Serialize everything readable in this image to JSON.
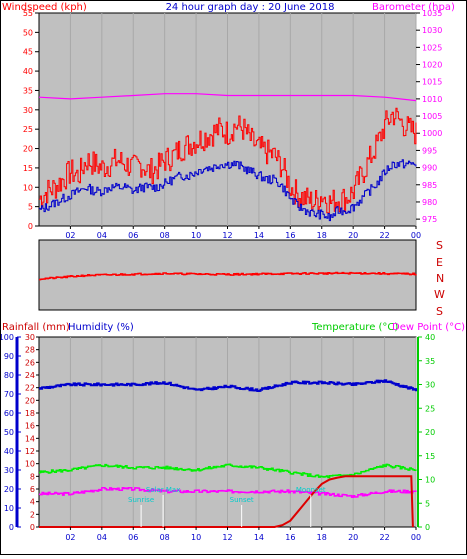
{
  "header": {
    "top_left": "Windspeed (kph)",
    "top_center": "24 hour graph day : 20 June 2018",
    "top_right": "Barometer (hpa)",
    "bottom_left_rain": "Rainfall (mm)",
    "bottom_left_hum": "Humidity (%)",
    "bottom_right_temp": "Temperature (°C)",
    "bottom_right_dew": "Dew Point (°C)"
  },
  "compass": [
    "S",
    "E",
    "N",
    "W",
    "S"
  ],
  "x_ticks": [
    "02",
    "04",
    "06",
    "08",
    "10",
    "12",
    "14",
    "16",
    "18",
    "20",
    "22",
    "00"
  ],
  "colors": {
    "wind": "#ff0000",
    "gust": "#0000cc",
    "baro": "#ff00ff",
    "dir": "#ff0000",
    "rain": "#dd0000",
    "humidity": "#0000cc",
    "temp": "#00ee00",
    "dew": "#ff00ff",
    "label": "#00cccc",
    "plot_bg": "#c0c0c0",
    "blue_axis": "#0000cc",
    "green_axis": "#00cc00"
  },
  "chart_data": [
    {
      "type": "line",
      "title": "24 hour graph day : 20 June 2018",
      "x_unit": "hour",
      "xlim": [
        0,
        24
      ],
      "y_left": {
        "label": "Windspeed (kph)",
        "ylim": [
          0,
          55
        ],
        "ticks": [
          0,
          5,
          10,
          15,
          20,
          25,
          30,
          35,
          40,
          45,
          50,
          55
        ]
      },
      "y_right": {
        "label": "Barometer (hpa)",
        "ylim": [
          973,
          1035
        ],
        "ticks": [
          975,
          980,
          985,
          990,
          995,
          1000,
          1005,
          1010,
          1015,
          1020,
          1025,
          1030,
          1035
        ]
      },
      "series": [
        {
          "axis": "left",
          "x": [
            0,
            0.5,
            1,
            1.5,
            2,
            2.5,
            3,
            3.5,
            4,
            4.5,
            5,
            5.5,
            6,
            6.5,
            7,
            7.5,
            8,
            8.5,
            9,
            9.5,
            10,
            10.5,
            11,
            11.5,
            12,
            12.5,
            13,
            13.5,
            14,
            14.5,
            15,
            15.5,
            16,
            16.5,
            17,
            17.5,
            18,
            18.5,
            19,
            19.5,
            20,
            20.5,
            21,
            21.5,
            22,
            22.5,
            23,
            23.5,
            24
          ],
          "y": [
            7,
            9,
            10,
            12,
            14,
            13,
            17,
            16,
            15,
            16,
            17,
            16,
            15,
            16,
            14,
            15,
            17,
            18,
            20,
            21,
            22,
            23,
            24,
            25,
            24,
            26,
            25,
            22,
            20,
            19,
            18,
            15,
            10,
            8,
            7,
            6,
            8,
            6,
            7,
            7,
            9,
            13,
            17,
            21,
            26,
            29,
            27,
            25,
            24
          ]
        },
        {
          "axis": "left",
          "x": [
            0,
            0.5,
            1,
            1.5,
            2,
            2.5,
            3,
            3.5,
            4,
            4.5,
            5,
            5.5,
            6,
            6.5,
            7,
            7.5,
            8,
            8.5,
            9,
            9.5,
            10,
            10.5,
            11,
            11.5,
            12,
            12.5,
            13,
            13.5,
            14,
            14.5,
            15,
            15.5,
            16,
            16.5,
            17,
            17.5,
            18,
            18.5,
            19,
            19.5,
            20,
            20.5,
            21,
            21.5,
            22,
            22.5,
            23,
            23.5,
            24
          ],
          "y": [
            4,
            5,
            6,
            7,
            8,
            9,
            10,
            9,
            9,
            10,
            10,
            10,
            9,
            10,
            10,
            10,
            11,
            12,
            13,
            13,
            14,
            15,
            15,
            16,
            16,
            16,
            15,
            14,
            13,
            12,
            12,
            10,
            7,
            5,
            4,
            3,
            3,
            2,
            4,
            4,
            5,
            7,
            9,
            11,
            14,
            16,
            16,
            16,
            16
          ]
        },
        {
          "axis": "right",
          "x": [
            0,
            2,
            4,
            6,
            8,
            10,
            12,
            14,
            16,
            18,
            20,
            22,
            24
          ],
          "y": [
            1010.5,
            1010,
            1010.5,
            1011,
            1011.5,
            1011.5,
            1011,
            1011,
            1011,
            1011,
            1011,
            1010.5,
            1009.5
          ]
        }
      ]
    },
    {
      "type": "line",
      "x_unit": "hour",
      "xlim": [
        0,
        24
      ],
      "y_labels": [
        "S",
        "E",
        "N",
        "W",
        "S"
      ],
      "ylim": [
        0,
        360
      ],
      "series": [
        {
          "x": [
            0,
            1,
            2,
            3,
            4,
            5,
            6,
            7,
            8,
            9,
            10,
            11,
            12,
            13,
            14,
            15,
            16,
            17,
            18,
            19,
            20,
            21,
            22,
            23,
            24
          ],
          "y": [
            160,
            165,
            172,
            178,
            180,
            182,
            184,
            186,
            188,
            186,
            185,
            184,
            183,
            184,
            185,
            186,
            187,
            188,
            188,
            189,
            189,
            189,
            187,
            186,
            185
          ]
        }
      ]
    },
    {
      "type": "line",
      "x_unit": "hour",
      "xlim": [
        0,
        24
      ],
      "y_rain": {
        "label": "Rainfall (mm)",
        "ylim": [
          0,
          30
        ],
        "ticks": [
          0,
          2,
          4,
          6,
          8,
          10,
          12,
          14,
          16,
          18,
          20,
          22,
          24,
          26,
          28,
          30
        ]
      },
      "y_humidity": {
        "label": "Humidity (%)",
        "ylim": [
          0,
          100
        ],
        "ticks": [
          0,
          10,
          20,
          30,
          40,
          50,
          60,
          70,
          80,
          90,
          100
        ]
      },
      "y_temp": {
        "label": "Temperature (°C) / Dew Point (°C)",
        "ylim": [
          0,
          40
        ],
        "ticks": [
          0,
          5,
          10,
          15,
          20,
          25,
          30,
          35,
          40
        ]
      },
      "series": [
        {
          "axis": "rain",
          "x": [
            0,
            15,
            15.5,
            16,
            16.5,
            17,
            17.5,
            18,
            18.5,
            19,
            19.5,
            20,
            20.5,
            21,
            22,
            23,
            23.7,
            23.8
          ],
          "y": [
            0,
            0,
            0.3,
            1,
            2.5,
            4,
            5.5,
            6.8,
            7.5,
            7.8,
            8,
            8,
            8,
            8,
            8,
            8,
            8,
            0
          ]
        },
        {
          "axis": "humidity",
          "x": [
            0,
            2,
            4,
            6,
            8,
            10,
            12,
            14,
            16,
            18,
            20,
            22,
            24
          ],
          "y": [
            73,
            75,
            75,
            75,
            76,
            72,
            74,
            72,
            76,
            76,
            75,
            77,
            72
          ]
        },
        {
          "axis": "temp",
          "x": [
            0,
            2,
            4,
            6,
            8,
            10,
            12,
            14,
            16,
            18,
            20,
            22,
            24
          ],
          "y": [
            11.5,
            12,
            13,
            12.5,
            12.5,
            12,
            13,
            12.5,
            11.5,
            10.5,
            11,
            13,
            12
          ]
        },
        {
          "axis": "temp",
          "x": [
            0,
            2,
            4,
            6,
            8,
            10,
            12,
            14,
            16,
            18,
            20,
            22,
            24
          ],
          "y": [
            7,
            7,
            8,
            8,
            7.5,
            7.5,
            7.5,
            7.5,
            7.5,
            7,
            6.5,
            7.5,
            7.5
          ]
        }
      ],
      "annotations": [
        {
          "x": 6.5,
          "label": "Sunrise"
        },
        {
          "x": 7.9,
          "label": "Solar Max"
        },
        {
          "x": 12.9,
          "label": "Sunset"
        },
        {
          "x": 17.3,
          "label": "Moonset"
        }
      ]
    }
  ]
}
